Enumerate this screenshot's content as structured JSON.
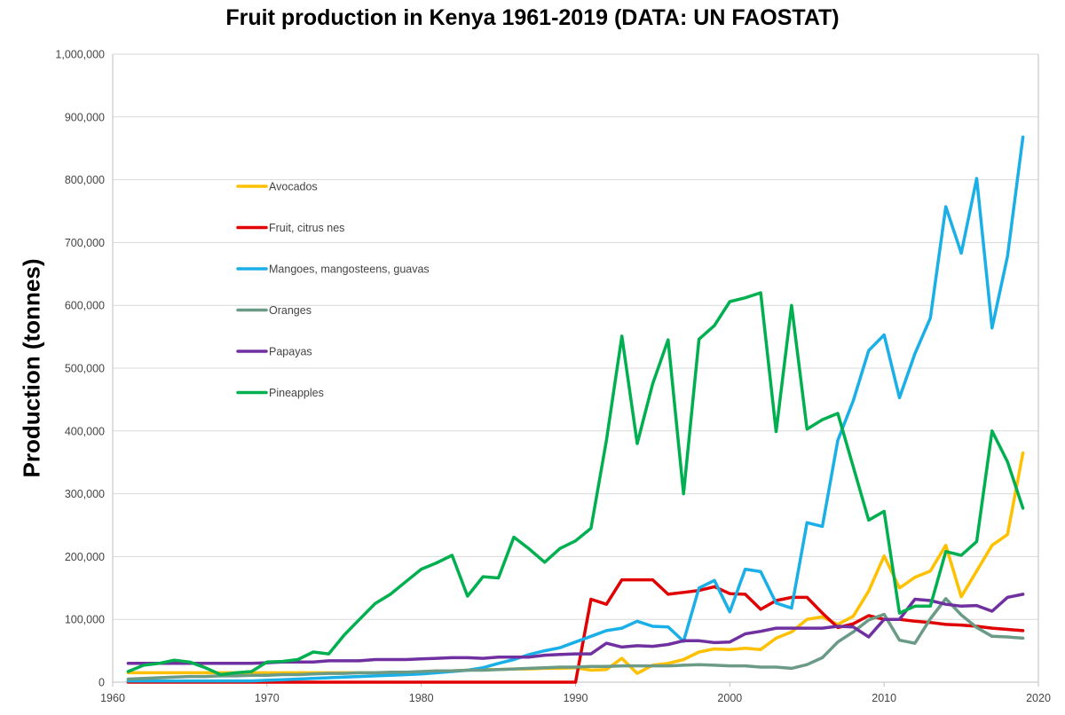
{
  "chart_data": {
    "type": "line",
    "title": "Fruit production in Kenya 1961-2019 (DATA: UN FAOSTAT)",
    "xlabel": "",
    "ylabel": "Production (tonnes)",
    "xlim": [
      1960,
      2020
    ],
    "ylim": [
      0,
      1000000
    ],
    "xticks": [
      1960,
      1970,
      1980,
      1990,
      2000,
      2010,
      2020
    ],
    "yticks": [
      0,
      100000,
      200000,
      300000,
      400000,
      500000,
      600000,
      700000,
      800000,
      900000,
      1000000
    ],
    "ytick_labels": [
      "0",
      "100,000",
      "200,000",
      "300,000",
      "400,000",
      "500,000",
      "600,000",
      "700,000",
      "800,000",
      "900,000",
      "1,000,000"
    ],
    "grid": "horizontal",
    "legend_position": "upper-left",
    "x": [
      1961,
      1962,
      1963,
      1964,
      1965,
      1966,
      1967,
      1968,
      1969,
      1970,
      1971,
      1972,
      1973,
      1974,
      1975,
      1976,
      1977,
      1978,
      1979,
      1980,
      1981,
      1982,
      1983,
      1984,
      1985,
      1986,
      1987,
      1988,
      1989,
      1990,
      1991,
      1992,
      1993,
      1994,
      1995,
      1996,
      1997,
      1998,
      1999,
      2000,
      2001,
      2002,
      2003,
      2004,
      2005,
      2006,
      2007,
      2008,
      2009,
      2010,
      2011,
      2012,
      2013,
      2014,
      2015,
      2016,
      2017,
      2018,
      2019
    ],
    "series": [
      {
        "name": "Avocados",
        "color": "#FFC000",
        "values": [
          15000,
          15000,
          15000,
          15000,
          15000,
          15000,
          15000,
          15000,
          15000,
          15000,
          15000,
          15000,
          15000,
          15000,
          15000,
          15000,
          15000,
          15000,
          15000,
          16000,
          17000,
          18000,
          19000,
          20000,
          20000,
          21000,
          21000,
          22000,
          22000,
          23000,
          19000,
          20000,
          38000,
          14000,
          27000,
          30000,
          36000,
          48000,
          53000,
          52000,
          54000,
          52000,
          70000,
          80000,
          100000,
          104000,
          92000,
          105000,
          145000,
          201000,
          150000,
          167000,
          177000,
          218000,
          136000,
          177000,
          218000,
          235000,
          365000
        ]
      },
      {
        "name": "Fruit, citrus nes",
        "color": "#E00000",
        "values": [
          0,
          0,
          0,
          0,
          0,
          0,
          0,
          0,
          0,
          0,
          0,
          0,
          0,
          0,
          0,
          0,
          0,
          0,
          0,
          0,
          0,
          0,
          0,
          0,
          0,
          0,
          0,
          0,
          0,
          0,
          132000,
          124000,
          163000,
          163000,
          163000,
          140000,
          143000,
          146000,
          152000,
          141000,
          140000,
          116000,
          130000,
          135000,
          135000,
          110000,
          87000,
          93000,
          106000,
          100000,
          100000,
          97000,
          95000,
          92000,
          91000,
          89000,
          86000,
          84000,
          82000
        ]
      },
      {
        "name": "Mangoes, mangosteens, guavas",
        "color": "#1AAFE6",
        "values": [
          2000,
          2000,
          2000,
          2000,
          2000,
          2000,
          2000,
          2000,
          2000,
          3000,
          4000,
          5000,
          6000,
          7000,
          8000,
          9000,
          10000,
          11000,
          12000,
          13000,
          15000,
          17000,
          19000,
          23000,
          30000,
          36000,
          44000,
          50000,
          55000,
          64000,
          73000,
          82000,
          86000,
          97000,
          89000,
          88000,
          65000,
          150000,
          162000,
          112000,
          180000,
          176000,
          126000,
          118000,
          254000,
          248000,
          385000,
          448000,
          528000,
          553000,
          453000,
          523000,
          580000,
          757000,
          683000,
          802000,
          564000,
          678000,
          868000
        ]
      },
      {
        "name": "Oranges",
        "color": "#6B9B87",
        "values": [
          5000,
          6000,
          7000,
          8000,
          9000,
          9000,
          10000,
          10000,
          11000,
          11000,
          12000,
          12000,
          13000,
          14000,
          14000,
          15000,
          15000,
          16000,
          16000,
          17000,
          18000,
          18000,
          19000,
          19000,
          20000,
          21000,
          22000,
          23000,
          24000,
          24000,
          25000,
          25000,
          26000,
          26000,
          26000,
          26000,
          27000,
          28000,
          27000,
          26000,
          26000,
          24000,
          24000,
          22000,
          28000,
          39000,
          64000,
          80000,
          99000,
          108000,
          67000,
          62000,
          101000,
          133000,
          107000,
          87000,
          73000,
          72000,
          70000
        ]
      },
      {
        "name": "Papayas",
        "color": "#7030A0",
        "values": [
          30000,
          30000,
          30000,
          30000,
          30000,
          30000,
          30000,
          30000,
          30000,
          31000,
          32000,
          32000,
          32000,
          34000,
          34000,
          34000,
          36000,
          36000,
          36000,
          37000,
          38000,
          39000,
          39000,
          38000,
          40000,
          40000,
          40000,
          43000,
          44000,
          45000,
          45000,
          62000,
          56000,
          58000,
          57000,
          60000,
          66000,
          66000,
          63000,
          64000,
          77000,
          81000,
          86000,
          86000,
          86000,
          86000,
          89000,
          88000,
          72000,
          100000,
          100000,
          132000,
          130000,
          124000,
          121000,
          122000,
          113000,
          135000,
          140000
        ]
      },
      {
        "name": "Pineapples",
        "color": "#00B050",
        "values": [
          17000,
          27000,
          30000,
          35000,
          32000,
          23000,
          12000,
          15000,
          17000,
          32000,
          33000,
          36000,
          48000,
          45000,
          75000,
          100000,
          125000,
          140000,
          160000,
          180000,
          190000,
          202000,
          137000,
          168000,
          166000,
          231000,
          212000,
          191000,
          213000,
          225000,
          245000,
          385000,
          551000,
          380000,
          475000,
          545000,
          300000,
          546000,
          568000,
          606000,
          612000,
          620000,
          399000,
          600000,
          403000,
          418000,
          428000,
          343000,
          258000,
          272000,
          110000,
          121000,
          121000,
          208000,
          202000,
          224000,
          400000,
          351000,
          277000
        ]
      }
    ]
  }
}
